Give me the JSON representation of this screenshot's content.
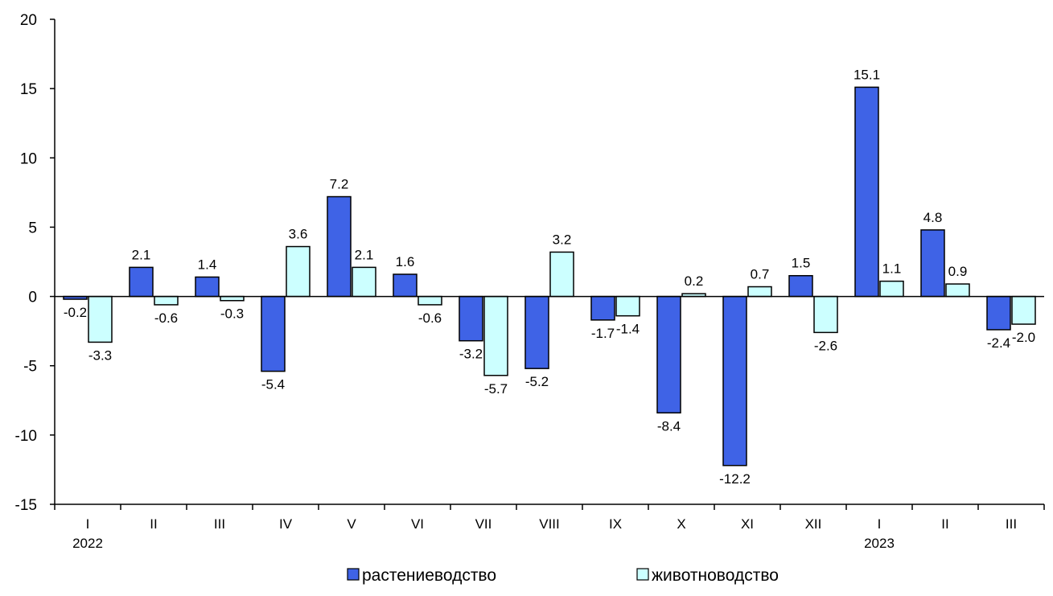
{
  "chart_data": {
    "type": "bar",
    "categories": [
      "I",
      "II",
      "III",
      "IV",
      "V",
      "VI",
      "VII",
      "VIII",
      "IX",
      "X",
      "XI",
      "XII",
      "I",
      "II",
      "III"
    ],
    "year_labels": [
      {
        "category_index": 0,
        "label": "2022"
      },
      {
        "category_index": 12,
        "label": "2023"
      }
    ],
    "series": [
      {
        "name": "растениеводство",
        "color": "#3F63E6",
        "values": [
          -0.2,
          2.1,
          1.4,
          -5.4,
          7.2,
          1.6,
          -3.2,
          -5.2,
          -1.7,
          -8.4,
          -12.2,
          1.5,
          15.1,
          4.8,
          -2.4
        ],
        "labels": [
          "-0.2",
          "2.1",
          "1.4",
          "-5.4",
          "7.2",
          "1.6",
          "-3.2",
          "-5.2",
          "-1.7",
          "-8.4",
          "-12.2",
          "1.5",
          "15.1",
          "4.8",
          "-2.4"
        ]
      },
      {
        "name": "животноводство",
        "color": "#CCFFFF",
        "values": [
          -3.3,
          -0.6,
          -0.3,
          3.6,
          2.1,
          -0.6,
          -5.7,
          3.2,
          -1.4,
          0.2,
          0.7,
          -2.6,
          1.1,
          0.9,
          -2.0
        ],
        "labels": [
          "-3.3",
          "-0.6",
          "-0.3",
          "3.6",
          "2.1",
          "-0.6",
          "-5.7",
          "3.2",
          "-1.4",
          "0.2",
          "0.7",
          "-2.6",
          "1.1",
          "0.9",
          "-2.0"
        ]
      }
    ],
    "ylim": [
      -15,
      20
    ],
    "y_ticks": [
      -15,
      -10,
      -5,
      0,
      5,
      10,
      15,
      20
    ],
    "y_tick_labels": [
      "-15",
      "-10",
      "-5",
      "0",
      "5",
      "10",
      "15",
      "20"
    ],
    "grid": false,
    "legend_position": "bottom-center",
    "title": "",
    "xlabel": "",
    "ylabel": ""
  }
}
